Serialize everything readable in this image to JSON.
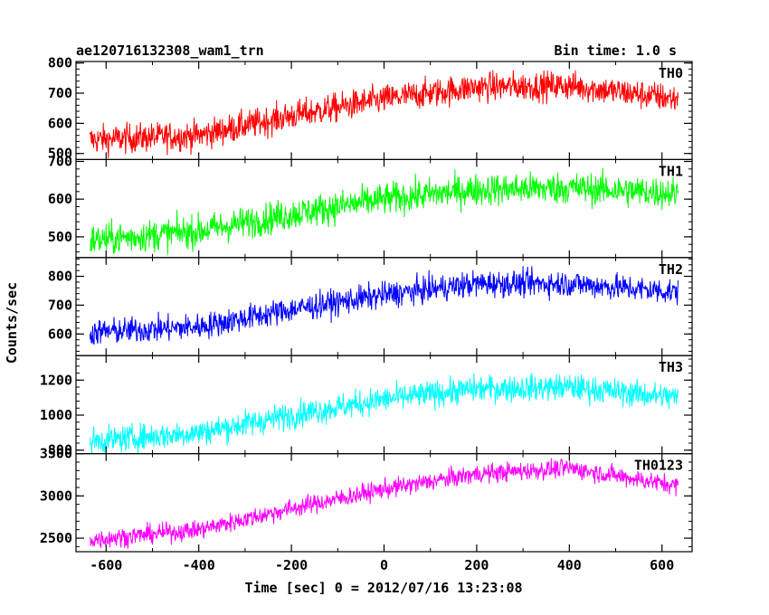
{
  "header": {
    "left_title": "ae120716132308_wam1_trn",
    "right_title": "Bin time: 1.0 s"
  },
  "chart_data": {
    "type": "line",
    "title": "ae120716132308_wam1_trn",
    "bin_time": "Bin time: 1.0 s",
    "xlabel": "Time [sec] 0 = 2012/07/16 13:23:08",
    "ylabel": "Counts/sec",
    "xlim": [
      -665,
      665
    ],
    "x_range": [
      -635,
      635
    ],
    "x_tick_labels": [
      "-600",
      "-400",
      "-200",
      "0",
      "200",
      "400",
      "600"
    ],
    "x_ticks": [
      -600,
      -400,
      -200,
      0,
      200,
      400,
      600
    ],
    "panels": [
      {
        "name": "TH0",
        "color": "#ff0000",
        "ylim": [
          480,
          805
        ],
        "yticks": [
          500,
          600,
          700,
          800
        ],
        "ytick_labels": [
          "500",
          "600",
          "700",
          "800"
        ],
        "trend": [
          [
            -635,
            545
          ],
          [
            -400,
            560
          ],
          [
            -200,
            625
          ],
          [
            0,
            680
          ],
          [
            200,
            720
          ],
          [
            400,
            725
          ],
          [
            635,
            680
          ]
        ],
        "noise": 48
      },
      {
        "name": "TH1",
        "color": "#00ff00",
        "ylim": [
          445,
          705
        ],
        "yticks": [
          500,
          600,
          700
        ],
        "ytick_labels": [
          "500",
          "600",
          "700"
        ],
        "trend": [
          [
            -635,
            490
          ],
          [
            -400,
            515
          ],
          [
            -200,
            560
          ],
          [
            0,
            600
          ],
          [
            200,
            625
          ],
          [
            400,
            630
          ],
          [
            635,
            615
          ]
        ],
        "noise": 42
      },
      {
        "name": "TH2",
        "color": "#0000ff",
        "ylim": [
          525,
          865
        ],
        "yticks": [
          600,
          700,
          800
        ],
        "ytick_labels": [
          "600",
          "700",
          "800"
        ],
        "trend": [
          [
            -635,
            605
          ],
          [
            -400,
            625
          ],
          [
            -200,
            685
          ],
          [
            0,
            735
          ],
          [
            200,
            775
          ],
          [
            400,
            775
          ],
          [
            635,
            745
          ]
        ],
        "noise": 45
      },
      {
        "name": "TH3",
        "color": "#00ffff",
        "ylim": [
          780,
          1340
        ],
        "yticks": [
          800,
          1000,
          1200
        ],
        "ytick_labels": [
          "800",
          "1000",
          "1200"
        ],
        "trend": [
          [
            -635,
            850
          ],
          [
            -400,
            900
          ],
          [
            -200,
            1000
          ],
          [
            0,
            1090
          ],
          [
            200,
            1150
          ],
          [
            400,
            1160
          ],
          [
            635,
            1100
          ]
        ],
        "noise": 75
      },
      {
        "name": "TH0123",
        "color": "#ff00ff",
        "ylim": [
          2340,
          3500
        ],
        "yticks": [
          2500,
          3000,
          3500
        ],
        "ytick_labels": [
          "2500",
          "3000",
          "3500"
        ],
        "trend": [
          [
            -635,
            2480
          ],
          [
            -400,
            2600
          ],
          [
            -200,
            2850
          ],
          [
            0,
            3080
          ],
          [
            200,
            3260
          ],
          [
            400,
            3330
          ],
          [
            635,
            3120
          ]
        ],
        "noise": 110
      }
    ],
    "grid": false,
    "legend": "none"
  }
}
